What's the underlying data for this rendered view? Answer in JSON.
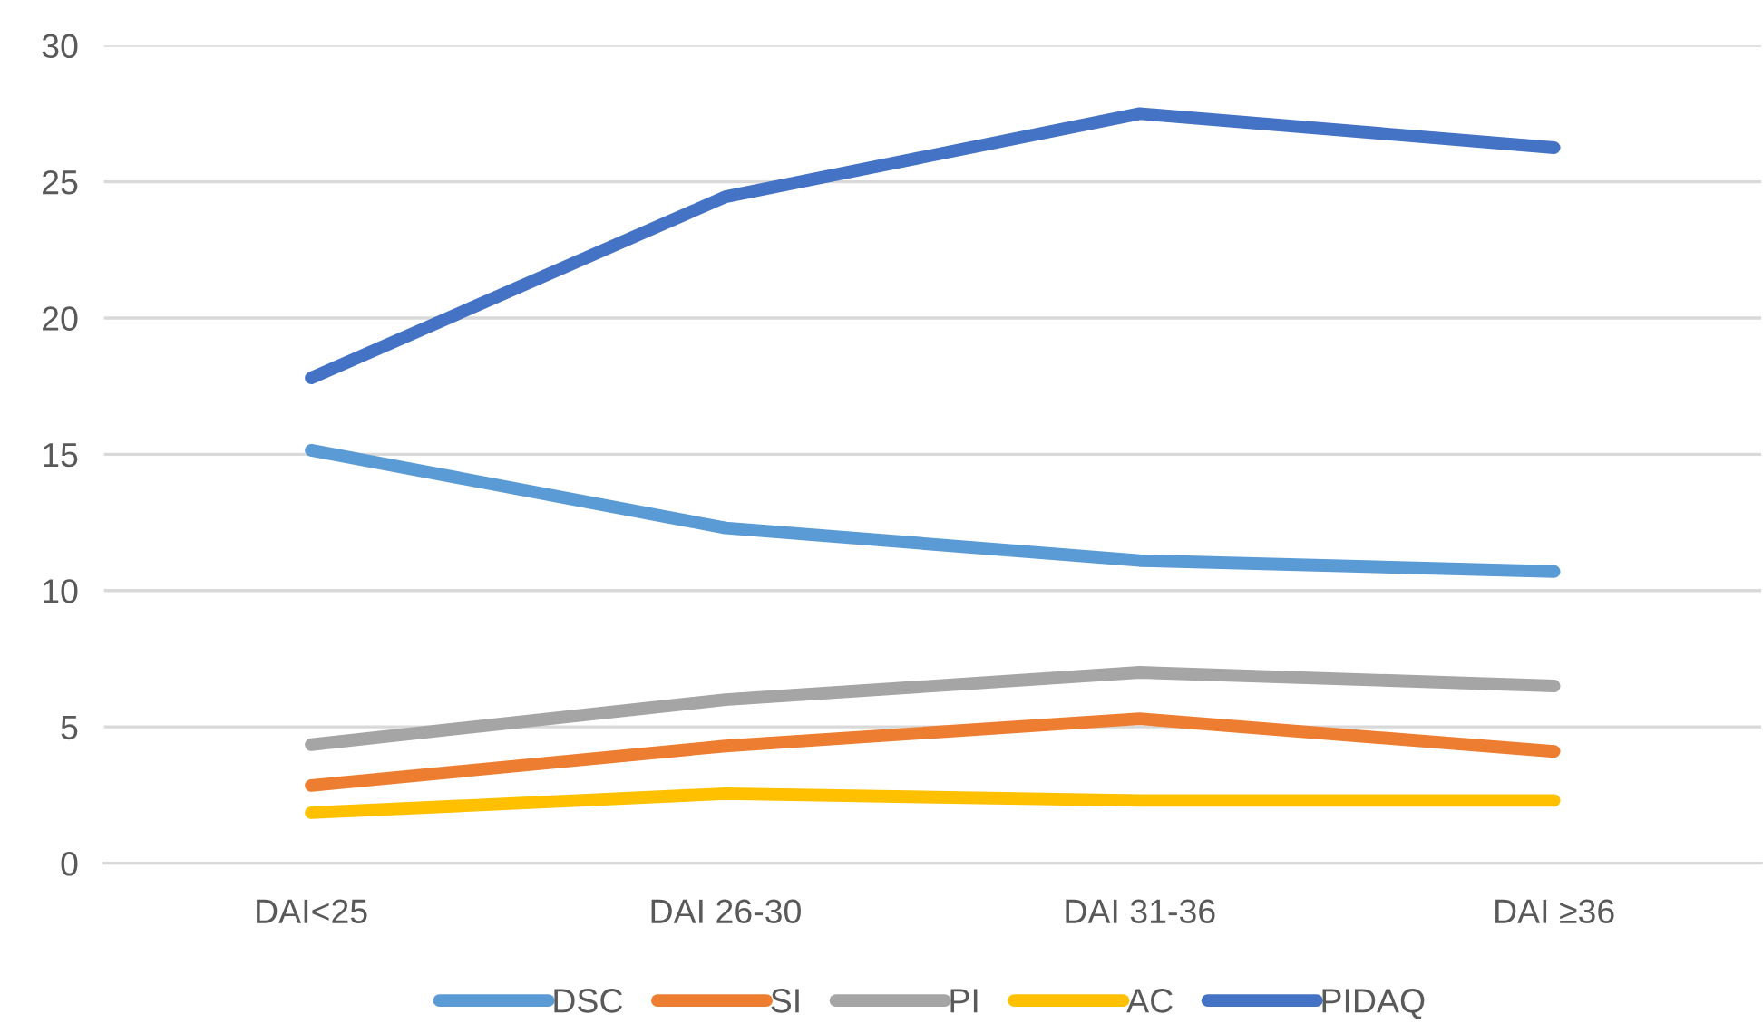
{
  "chart_data": {
    "type": "line",
    "categories": [
      "DAI<25",
      "DAI 26-30",
      "DAI 31-36",
      "DAI ≥36"
    ],
    "series": [
      {
        "name": "DSC",
        "color": "#5b9bd5",
        "values": [
          15.15,
          12.3,
          11.1,
          10.7
        ]
      },
      {
        "name": "SI",
        "color": "#ed7d31",
        "values": [
          2.85,
          4.3,
          5.3,
          4.1
        ]
      },
      {
        "name": "PI",
        "color": "#a5a5a5",
        "values": [
          4.35,
          6.0,
          7.0,
          6.5
        ]
      },
      {
        "name": "AC",
        "color": "#ffc000",
        "values": [
          1.85,
          2.55,
          2.3,
          2.3
        ]
      },
      {
        "name": "PIDAQ",
        "color": "#4472c4",
        "values": [
          17.8,
          24.45,
          27.5,
          26.25
        ]
      }
    ],
    "ylim": [
      0,
      30
    ],
    "yticks": [
      0,
      5,
      10,
      15,
      20,
      25,
      30
    ],
    "grid": "y",
    "legend": "bottom",
    "marker": "none",
    "line_style": "solid"
  }
}
